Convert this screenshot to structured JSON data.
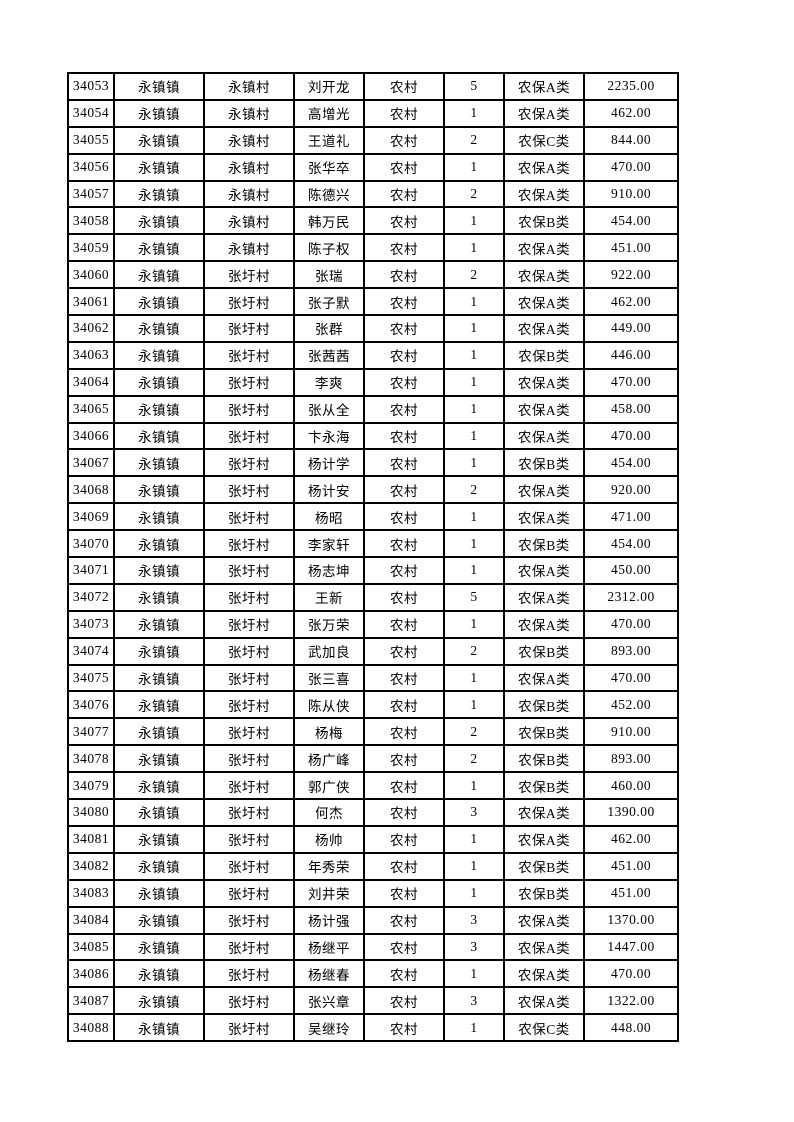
{
  "page": {
    "background_color": "#ffffff",
    "border_color": "#000000"
  },
  "table": {
    "column_keys": [
      "id",
      "town",
      "village",
      "name",
      "category",
      "count",
      "insurance_type",
      "amount"
    ],
    "rows": [
      [
        "34053",
        "永镇镇",
        "永镇村",
        "刘开龙",
        "农村",
        "5",
        "农保A类",
        "2235.00"
      ],
      [
        "34054",
        "永镇镇",
        "永镇村",
        "高增光",
        "农村",
        "1",
        "农保A类",
        "462.00"
      ],
      [
        "34055",
        "永镇镇",
        "永镇村",
        "王道礼",
        "农村",
        "2",
        "农保C类",
        "844.00"
      ],
      [
        "34056",
        "永镇镇",
        "永镇村",
        "张华卒",
        "农村",
        "1",
        "农保A类",
        "470.00"
      ],
      [
        "34057",
        "永镇镇",
        "永镇村",
        "陈德兴",
        "农村",
        "2",
        "农保A类",
        "910.00"
      ],
      [
        "34058",
        "永镇镇",
        "永镇村",
        "韩万民",
        "农村",
        "1",
        "农保B类",
        "454.00"
      ],
      [
        "34059",
        "永镇镇",
        "永镇村",
        "陈子权",
        "农村",
        "1",
        "农保A类",
        "451.00"
      ],
      [
        "34060",
        "永镇镇",
        "张圩村",
        "张瑞",
        "农村",
        "2",
        "农保A类",
        "922.00"
      ],
      [
        "34061",
        "永镇镇",
        "张圩村",
        "张子默",
        "农村",
        "1",
        "农保A类",
        "462.00"
      ],
      [
        "34062",
        "永镇镇",
        "张圩村",
        "张群",
        "农村",
        "1",
        "农保A类",
        "449.00"
      ],
      [
        "34063",
        "永镇镇",
        "张圩村",
        "张茜茜",
        "农村",
        "1",
        "农保B类",
        "446.00"
      ],
      [
        "34064",
        "永镇镇",
        "张圩村",
        "李爽",
        "农村",
        "1",
        "农保A类",
        "470.00"
      ],
      [
        "34065",
        "永镇镇",
        "张圩村",
        "张从全",
        "农村",
        "1",
        "农保A类",
        "458.00"
      ],
      [
        "34066",
        "永镇镇",
        "张圩村",
        "卞永海",
        "农村",
        "1",
        "农保A类",
        "470.00"
      ],
      [
        "34067",
        "永镇镇",
        "张圩村",
        "杨计学",
        "农村",
        "1",
        "农保B类",
        "454.00"
      ],
      [
        "34068",
        "永镇镇",
        "张圩村",
        "杨计安",
        "农村",
        "2",
        "农保A类",
        "920.00"
      ],
      [
        "34069",
        "永镇镇",
        "张圩村",
        "杨昭",
        "农村",
        "1",
        "农保A类",
        "471.00"
      ],
      [
        "34070",
        "永镇镇",
        "张圩村",
        "李家轩",
        "农村",
        "1",
        "农保B类",
        "454.00"
      ],
      [
        "34071",
        "永镇镇",
        "张圩村",
        "杨志坤",
        "农村",
        "1",
        "农保A类",
        "450.00"
      ],
      [
        "34072",
        "永镇镇",
        "张圩村",
        "王新",
        "农村",
        "5",
        "农保A类",
        "2312.00"
      ],
      [
        "34073",
        "永镇镇",
        "张圩村",
        "张万荣",
        "农村",
        "1",
        "农保A类",
        "470.00"
      ],
      [
        "34074",
        "永镇镇",
        "张圩村",
        "武加良",
        "农村",
        "2",
        "农保B类",
        "893.00"
      ],
      [
        "34075",
        "永镇镇",
        "张圩村",
        "张三喜",
        "农村",
        "1",
        "农保A类",
        "470.00"
      ],
      [
        "34076",
        "永镇镇",
        "张圩村",
        "陈从侠",
        "农村",
        "1",
        "农保B类",
        "452.00"
      ],
      [
        "34077",
        "永镇镇",
        "张圩村",
        "杨梅",
        "农村",
        "2",
        "农保B类",
        "910.00"
      ],
      [
        "34078",
        "永镇镇",
        "张圩村",
        "杨广峰",
        "农村",
        "2",
        "农保B类",
        "893.00"
      ],
      [
        "34079",
        "永镇镇",
        "张圩村",
        "郭广侠",
        "农村",
        "1",
        "农保B类",
        "460.00"
      ],
      [
        "34080",
        "永镇镇",
        "张圩村",
        "何杰",
        "农村",
        "3",
        "农保A类",
        "1390.00"
      ],
      [
        "34081",
        "永镇镇",
        "张圩村",
        "杨帅",
        "农村",
        "1",
        "农保A类",
        "462.00"
      ],
      [
        "34082",
        "永镇镇",
        "张圩村",
        "年秀荣",
        "农村",
        "1",
        "农保B类",
        "451.00"
      ],
      [
        "34083",
        "永镇镇",
        "张圩村",
        "刘井荣",
        "农村",
        "1",
        "农保B类",
        "451.00"
      ],
      [
        "34084",
        "永镇镇",
        "张圩村",
        "杨计强",
        "农村",
        "3",
        "农保A类",
        "1370.00"
      ],
      [
        "34085",
        "永镇镇",
        "张圩村",
        "杨继平",
        "农村",
        "3",
        "农保A类",
        "1447.00"
      ],
      [
        "34086",
        "永镇镇",
        "张圩村",
        "杨继春",
        "农村",
        "1",
        "农保A类",
        "470.00"
      ],
      [
        "34087",
        "永镇镇",
        "张圩村",
        "张兴章",
        "农村",
        "3",
        "农保A类",
        "1322.00"
      ],
      [
        "34088",
        "永镇镇",
        "张圩村",
        "吴继玲",
        "农村",
        "1",
        "农保C类",
        "448.00"
      ]
    ]
  }
}
